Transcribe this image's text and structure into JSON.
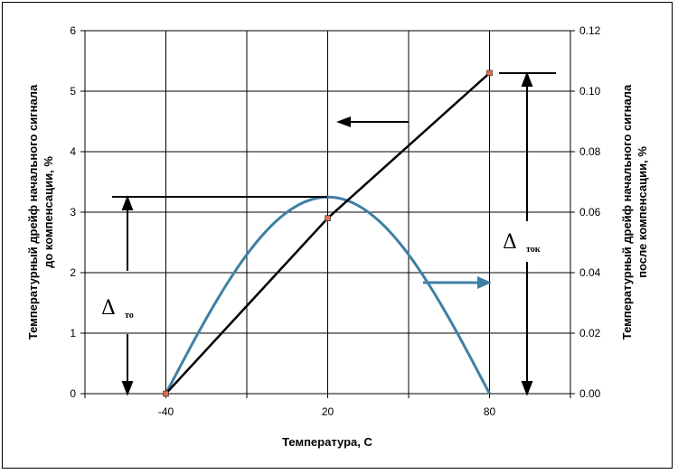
{
  "chart_data": {
    "type": "line",
    "xlabel": "Температура, С",
    "ylabel_left": "Температурный дрейф начального сигнала до компенсации, %",
    "ylabel_left_lines": [
      "Температурный дрейф начального сигнала",
      "до компенсации, %"
    ],
    "ylabel_right": "Температурный дрейф начального сигнала после компенсации, %",
    "ylabel_right_lines": [
      "Температурный дрейф начального сигнала",
      "после компенсации, %"
    ],
    "xlim": [
      -70,
      110
    ],
    "x_gridlines": [
      -70,
      -40,
      -10,
      20,
      50,
      80,
      110
    ],
    "x_tick_labels": [
      -40,
      20,
      80
    ],
    "ylim_left": [
      0,
      6
    ],
    "y_ticks_left": [
      "0",
      "1",
      "2",
      "3",
      "4",
      "5",
      "6"
    ],
    "ylim_right": [
      0,
      0.12
    ],
    "y_ticks_right": [
      "0.00",
      "0.02",
      "0.04",
      "0.06",
      "0.08",
      "0.10",
      "0.12"
    ],
    "grid": true,
    "series": [
      {
        "axis": "left",
        "color": "#000000",
        "marker_color": "#e07050",
        "x": [
          -40,
          20,
          80
        ],
        "y": [
          0,
          2.9,
          5.3
        ]
      },
      {
        "axis": "right",
        "color": "#3f7fa6",
        "x": [
          -40,
          20,
          80
        ],
        "y": [
          0,
          0.065,
          0
        ]
      }
    ],
    "annotations": {
      "delta_to": {
        "symbol": "Δ",
        "subscript": "то"
      },
      "delta_tok": {
        "symbol": "Δ",
        "subscript": "ток"
      }
    }
  }
}
